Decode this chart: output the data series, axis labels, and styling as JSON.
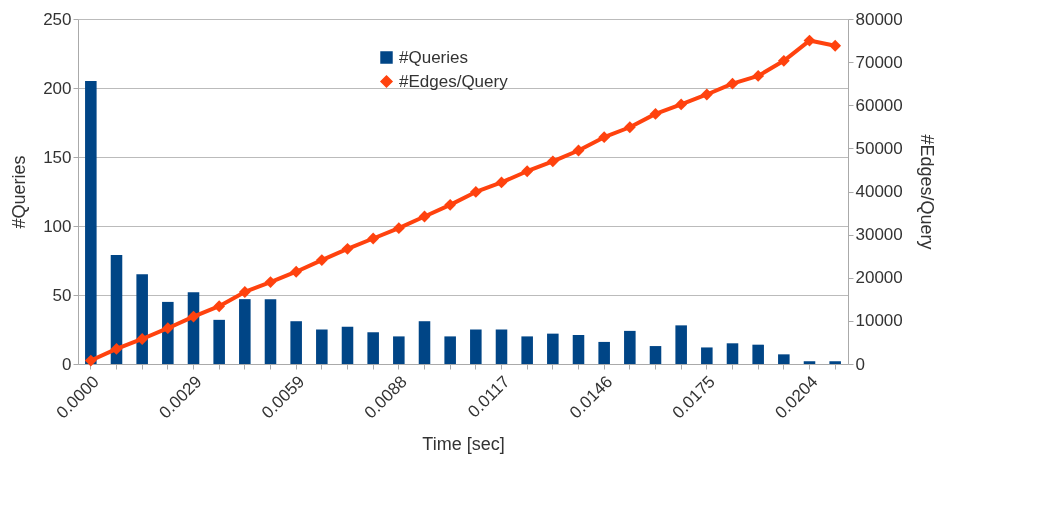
{
  "chart_data": {
    "type": "bar",
    "xlabel": "Time [sec]",
    "ylabel": "#Queries",
    "y2label": "#Edges/Query",
    "categories": [
      "0.0000",
      null,
      null,
      null,
      "0.0029",
      null,
      null,
      null,
      "0.0059",
      null,
      null,
      null,
      "0.0088",
      null,
      null,
      null,
      "0.0117",
      null,
      null,
      null,
      "0.0146",
      null,
      null,
      null,
      "0.0175",
      null,
      null,
      null,
      "0.0204",
      null
    ],
    "series": [
      {
        "name": "#Queries",
        "color": "#004586",
        "values": [
          205,
          79,
          65,
          45,
          52,
          32,
          47,
          47,
          31,
          25,
          27,
          23,
          20,
          31,
          20,
          25,
          25,
          20,
          22,
          21,
          16,
          24,
          13,
          28,
          12,
          15,
          14,
          7,
          2,
          2
        ]
      },
      {
        "name": "#Edges/Query",
        "type": "line",
        "axis": "y2",
        "color": "#ff420e",
        "values": [
          800,
          3500,
          5800,
          8300,
          11000,
          13400,
          16700,
          19000,
          21400,
          24100,
          26700,
          29100,
          31500,
          34200,
          36900,
          39900,
          42100,
          44700,
          47000,
          49500,
          52600,
          54900,
          58000,
          60200,
          62500,
          65000,
          66800,
          70300,
          75000,
          73800
        ]
      }
    ],
    "ylim": [
      0,
      250
    ],
    "yticks": [
      0,
      50,
      100,
      150,
      200,
      250
    ],
    "y2lim": [
      0,
      80000
    ],
    "y2ticks": [
      0,
      10000,
      20000,
      30000,
      40000,
      50000,
      60000,
      70000,
      80000
    ],
    "grid": "y",
    "legend": "top",
    "marker": "diamond"
  }
}
